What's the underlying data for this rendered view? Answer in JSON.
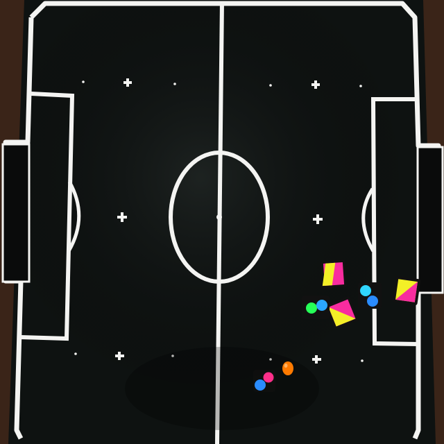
{
  "scene": {
    "description_tag": "overhead-view-robot-soccer-field",
    "colors": {
      "surroundings": "#3a2418",
      "field": "#0e1211",
      "line": "#f4f4f2",
      "robot_body": "#111111"
    }
  },
  "ball": {
    "color": "#ff7a00"
  },
  "robots": [
    {
      "id": "r1",
      "top_patch": [
        "#f82c9f",
        "#f3ef27"
      ],
      "pattern": "diagonal-split"
    },
    {
      "id": "r2",
      "top_patch": [
        "#f82c9f",
        "#f3ef27"
      ],
      "pattern": "diagonal-split"
    },
    {
      "id": "r3",
      "top_patch": [
        "#f3ef27",
        "#f82c9f"
      ],
      "pattern": "diagonal-split"
    },
    {
      "id": "r4",
      "dots": [
        "#26ff58",
        "#2aa8ff"
      ]
    },
    {
      "id": "r5",
      "dots": [
        "#30d6ff",
        "#2a8cff"
      ]
    },
    {
      "id": "r6",
      "dots": [
        "#ff2f8a",
        "#2a8cff"
      ]
    }
  ]
}
